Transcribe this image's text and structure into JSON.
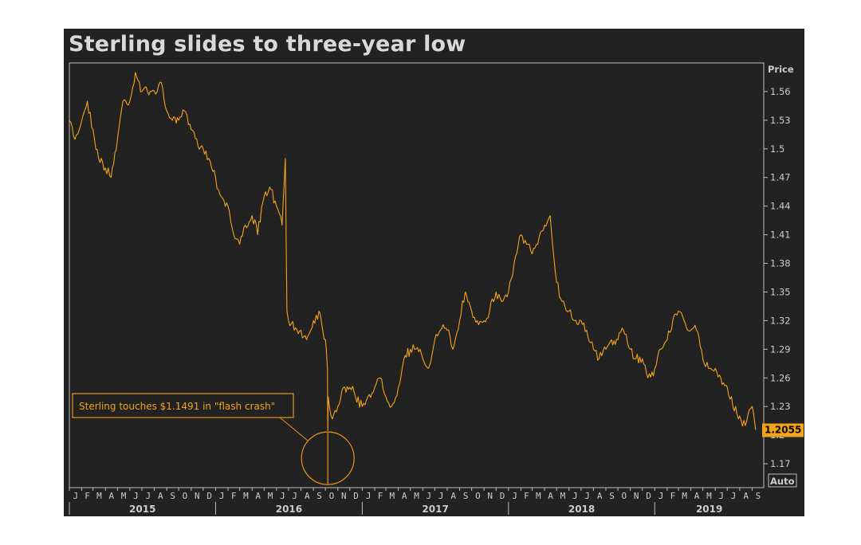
{
  "title": "Sterling slides to three-year low",
  "chart_data": {
    "type": "line",
    "title": "Sterling slides to three-year low",
    "xlabel": "",
    "ylabel": "Price",
    "ylim": [
      1.145,
      1.59
    ],
    "xlim": [
      "2015-01-01",
      "2019-09-30"
    ],
    "yticks": [
      1.56,
      1.53,
      1.5,
      1.47,
      1.44,
      1.41,
      1.38,
      1.35,
      1.32,
      1.29,
      1.26,
      1.23,
      1.2,
      1.17
    ],
    "ytick_labels": [
      "1.56",
      "1.53",
      "1.5",
      "1.47",
      "1.44",
      "1.41",
      "1.38",
      "1.35",
      "1.32",
      "1.29",
      "1.26",
      "1.23",
      "1.2",
      "1.17"
    ],
    "month_labels": [
      "J",
      "F",
      "M",
      "A",
      "M",
      "J",
      "J",
      "A",
      "S",
      "O",
      "N",
      "D",
      "J",
      "F",
      "M",
      "A",
      "M",
      "J",
      "J",
      "A",
      "S",
      "O",
      "N",
      "D",
      "J",
      "F",
      "M",
      "A",
      "M",
      "J",
      "J",
      "A",
      "S",
      "O",
      "N",
      "D",
      "J",
      "F",
      "M",
      "A",
      "M",
      "J",
      "J",
      "A",
      "S",
      "O",
      "N",
      "D",
      "J",
      "F",
      "M",
      "A",
      "M",
      "J",
      "J",
      "A",
      "S"
    ],
    "year_labels": [
      "2015",
      "2016",
      "2017",
      "2018",
      "2019"
    ],
    "last_value": 1.2055,
    "last_value_label": "1.2055",
    "line_color": "#f5a21c",
    "series": [
      {
        "x": [
          "2015-01-01",
          "2015-01-15",
          "2015-02-01",
          "2015-02-15",
          "2015-03-01",
          "2015-03-15",
          "2015-04-01",
          "2015-04-15",
          "2015-05-01",
          "2015-05-15",
          "2015-06-01",
          "2015-06-15",
          "2015-07-01",
          "2015-07-15",
          "2015-08-01",
          "2015-08-15",
          "2015-09-01",
          "2015-09-15",
          "2015-10-01",
          "2015-10-15",
          "2015-11-01",
          "2015-11-15",
          "2015-12-01",
          "2015-12-15",
          "2016-01-01",
          "2016-01-15",
          "2016-02-01",
          "2016-02-15",
          "2016-03-01",
          "2016-03-15",
          "2016-04-01",
          "2016-04-15",
          "2016-05-01",
          "2016-05-15",
          "2016-06-01",
          "2016-06-15",
          "2016-06-23",
          "2016-06-27",
          "2016-07-01",
          "2016-07-15",
          "2016-08-01",
          "2016-08-15",
          "2016-09-01",
          "2016-09-15",
          "2016-10-01",
          "2016-10-06",
          "2016-10-07",
          "2016-10-08",
          "2016-10-15",
          "2016-11-01",
          "2016-11-15",
          "2016-12-01",
          "2016-12-15",
          "2017-01-01",
          "2017-01-15",
          "2017-02-01",
          "2017-02-15",
          "2017-03-01",
          "2017-03-15",
          "2017-04-01",
          "2017-04-15",
          "2017-05-01",
          "2017-05-15",
          "2017-06-01",
          "2017-06-15",
          "2017-07-01",
          "2017-07-15",
          "2017-08-01",
          "2017-08-15",
          "2017-09-01",
          "2017-09-15",
          "2017-10-01",
          "2017-10-15",
          "2017-11-01",
          "2017-11-15",
          "2017-12-01",
          "2017-12-15",
          "2018-01-01",
          "2018-01-15",
          "2018-02-01",
          "2018-02-15",
          "2018-03-01",
          "2018-03-15",
          "2018-04-01",
          "2018-04-15",
          "2018-05-01",
          "2018-05-15",
          "2018-06-01",
          "2018-06-15",
          "2018-07-01",
          "2018-07-15",
          "2018-08-01",
          "2018-08-15",
          "2018-09-01",
          "2018-09-15",
          "2018-10-01",
          "2018-10-15",
          "2018-11-01",
          "2018-11-15",
          "2018-12-01",
          "2018-12-15",
          "2019-01-01",
          "2019-01-15",
          "2019-02-01",
          "2019-02-15",
          "2019-03-01",
          "2019-03-15",
          "2019-04-01",
          "2019-04-15",
          "2019-05-01",
          "2019-05-15",
          "2019-06-01",
          "2019-06-15",
          "2019-07-01",
          "2019-07-15",
          "2019-08-01",
          "2019-08-15",
          "2019-09-01",
          "2019-09-10"
        ],
        "y": [
          1.53,
          1.51,
          1.53,
          1.55,
          1.52,
          1.49,
          1.48,
          1.47,
          1.51,
          1.55,
          1.55,
          1.58,
          1.56,
          1.56,
          1.56,
          1.57,
          1.54,
          1.53,
          1.53,
          1.54,
          1.52,
          1.51,
          1.5,
          1.49,
          1.47,
          1.45,
          1.44,
          1.41,
          1.4,
          1.42,
          1.43,
          1.41,
          1.45,
          1.46,
          1.44,
          1.42,
          1.49,
          1.33,
          1.32,
          1.31,
          1.31,
          1.3,
          1.32,
          1.33,
          1.3,
          1.27,
          1.2049,
          1.24,
          1.22,
          1.23,
          1.25,
          1.25,
          1.24,
          1.23,
          1.24,
          1.25,
          1.26,
          1.24,
          1.23,
          1.25,
          1.28,
          1.29,
          1.29,
          1.28,
          1.27,
          1.3,
          1.31,
          1.31,
          1.29,
          1.32,
          1.35,
          1.33,
          1.32,
          1.32,
          1.33,
          1.35,
          1.34,
          1.35,
          1.38,
          1.41,
          1.4,
          1.39,
          1.4,
          1.42,
          1.43,
          1.36,
          1.34,
          1.33,
          1.32,
          1.32,
          1.31,
          1.29,
          1.28,
          1.29,
          1.3,
          1.3,
          1.31,
          1.29,
          1.28,
          1.28,
          1.26,
          1.27,
          1.29,
          1.3,
          1.32,
          1.33,
          1.32,
          1.31,
          1.31,
          1.28,
          1.27,
          1.27,
          1.26,
          1.25,
          1.23,
          1.22,
          1.21,
          1.23,
          1.2055
        ]
      }
    ],
    "annotation": {
      "text": "Sterling touches $1.1491 in \"flash crash\"",
      "x": "2016-10-07",
      "y": 1.1491
    },
    "auto_label": "Auto",
    "grid": false
  }
}
